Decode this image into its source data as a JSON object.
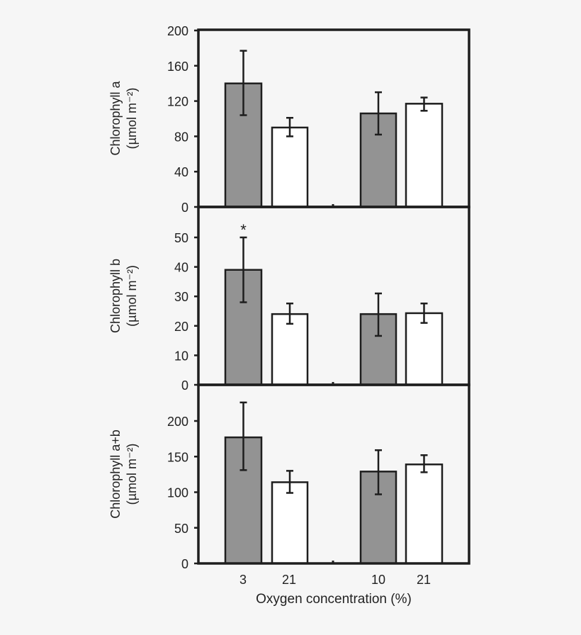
{
  "chart_data": [
    {
      "type": "bar",
      "ylabel_line1": "Chlorophyll a",
      "ylabel_line2": "(µmol m⁻²)",
      "ylim": [
        0,
        200
      ],
      "yticks": [
        0,
        40,
        80,
        120,
        160,
        200
      ],
      "categories": [
        "3",
        "21",
        "10",
        "21"
      ],
      "values": [
        140,
        90,
        106,
        117
      ],
      "errors_upper": [
        177,
        101,
        130,
        124
      ],
      "errors_lower": [
        104,
        80,
        82,
        109
      ],
      "annotations": []
    },
    {
      "type": "bar",
      "ylabel_line1": "Chlorophyll b",
      "ylabel_line2": "(µmol m⁻²)",
      "ylim": [
        0,
        60
      ],
      "yticks": [
        0,
        10,
        20,
        30,
        40,
        50
      ],
      "categories": [
        "3",
        "21",
        "10",
        "21"
      ],
      "values": [
        39,
        24,
        24,
        24.3
      ],
      "errors_upper": [
        50,
        27.6,
        31,
        27.6
      ],
      "errors_lower": [
        28,
        20.7,
        16.6,
        21
      ],
      "annotations": [
        {
          "category_index": 0,
          "text": "*"
        }
      ]
    },
    {
      "type": "bar",
      "ylabel_line1": "Chlorophyll a+b",
      "ylabel_line2": "(µmol m⁻²)",
      "ylim": [
        0,
        250
      ],
      "yticks": [
        0,
        50,
        100,
        150,
        200
      ],
      "categories": [
        "3",
        "21",
        "10",
        "21"
      ],
      "values": [
        177,
        114,
        129,
        139
      ],
      "errors_upper": [
        226,
        130,
        159,
        152
      ],
      "errors_lower": [
        131,
        99,
        97,
        128
      ],
      "annotations": []
    }
  ],
  "xlabel": "Oxygen concentration (%)",
  "xtick_labels": [
    "3",
    "21",
    "10",
    "21"
  ],
  "colors": {
    "bar_fills": [
      "#939393",
      "#ffffff",
      "#939393",
      "#ffffff"
    ],
    "stroke": "#1e1e1e",
    "background": "#f6f6f6"
  }
}
